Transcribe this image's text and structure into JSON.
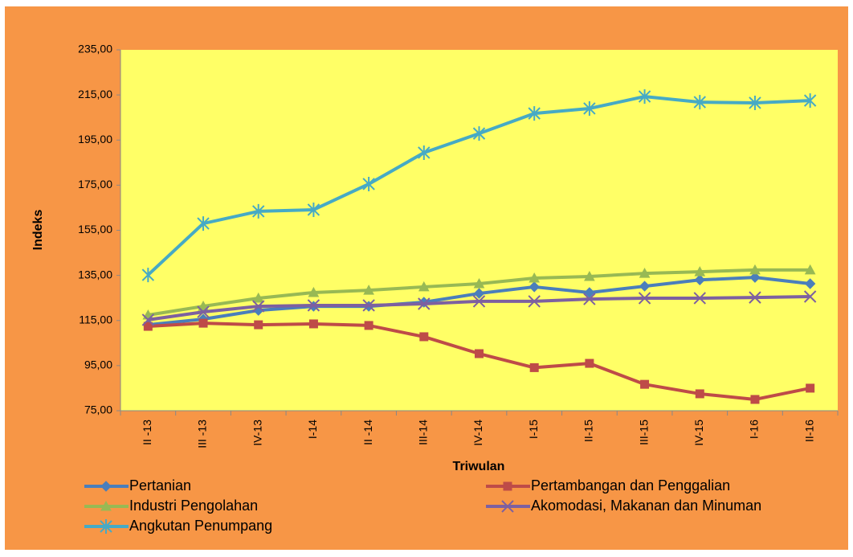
{
  "chart_data": {
    "type": "line",
    "x_label": "Triwulan",
    "y_label": "Indeks",
    "categories": [
      "II -13",
      "III -13",
      "IV-13",
      "I-14",
      "II -14",
      "III-14",
      "IV-14",
      "I-15",
      "II-15",
      "III-15",
      "IV-15",
      "I-16",
      "II-16"
    ],
    "series": [
      {
        "name": "Pertanian",
        "color": "#4a7ebb",
        "marker": "diamond",
        "values": [
          113.1,
          115.6,
          119.5,
          121.3,
          121.3,
          123.1,
          127.0,
          129.9,
          127.4,
          130.2,
          133.0,
          134.1,
          131.3
        ]
      },
      {
        "name": "Pertambangan dan Penggalian",
        "color": "#be4b48",
        "marker": "square",
        "values": [
          112.4,
          113.8,
          113.1,
          113.5,
          112.8,
          107.8,
          100.3,
          94.1,
          96.0,
          86.7,
          82.5,
          80.0,
          85.0
        ]
      },
      {
        "name": "Industri Pengolahan",
        "color": "#98b954",
        "marker": "triangle",
        "values": [
          117.4,
          121.3,
          124.9,
          127.4,
          128.4,
          129.9,
          131.3,
          133.8,
          134.5,
          135.9,
          136.6,
          137.4,
          137.4
        ]
      },
      {
        "name": "Akomodasi, Makanan dan Minuman",
        "color": "#7d60a0",
        "marker": "x",
        "values": [
          115.3,
          118.8,
          121.3,
          121.7,
          121.7,
          122.4,
          123.5,
          123.5,
          124.5,
          124.9,
          124.9,
          125.2,
          125.6
        ]
      },
      {
        "name": "Angkutan Penumpang",
        "color": "#46aac5",
        "marker": "star",
        "values": [
          135.2,
          158.0,
          163.4,
          164.1,
          175.5,
          189.4,
          197.9,
          206.8,
          209.0,
          214.3,
          211.8,
          211.5,
          212.5
        ]
      }
    ],
    "ylim": [
      75,
      235
    ],
    "yticks": [
      {
        "value": 75,
        "label": "75,00"
      },
      {
        "value": 95,
        "label": "95,00"
      },
      {
        "value": 115,
        "label": "115,00"
      },
      {
        "value": 135,
        "label": "135,00"
      },
      {
        "value": 155,
        "label": "155,00"
      },
      {
        "value": 175,
        "label": "175,00"
      },
      {
        "value": 195,
        "label": "195,00"
      },
      {
        "value": 215,
        "label": "215,00"
      },
      {
        "value": 235,
        "label": "235,00"
      }
    ],
    "legend": "bottom"
  }
}
